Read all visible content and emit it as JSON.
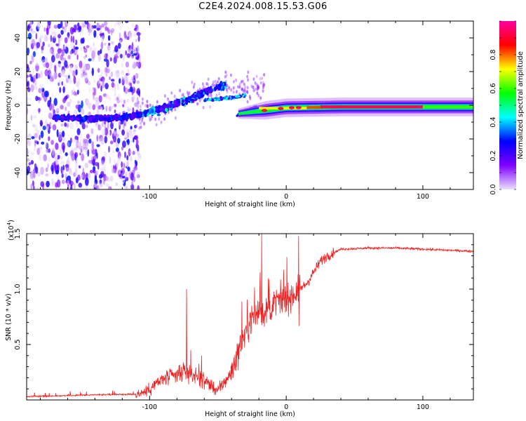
{
  "title": "C2E4.2024.008.15.53.G06",
  "chart_data": [
    {
      "type": "heatmap",
      "xlabel": "Height of straight line (km)",
      "ylabel": "Frequency (Hz)",
      "xlim": [
        -190,
        137
      ],
      "ylim": [
        -50,
        50
      ],
      "xticks": [
        -100,
        0,
        100
      ],
      "xtick_labels": [
        "-100",
        "0",
        "100"
      ],
      "yticks": [
        -40,
        -20,
        0,
        20,
        40
      ],
      "ytick_labels": [
        "-40",
        "-20",
        "0",
        "20",
        "40"
      ],
      "colorbar": {
        "label": "Normalized spectral amplitude",
        "range": [
          0,
          1
        ],
        "ticks": [
          0.0,
          0.2,
          0.4,
          0.6,
          0.8
        ],
        "tick_labels": [
          "0.0",
          "0.2",
          "0.4",
          "0.6",
          "0.8"
        ],
        "colors": [
          "#ebe0ff",
          "#8000ff",
          "#0000ff",
          "#00ffff",
          "#00ff00",
          "#ffff00",
          "#ff0000",
          "#ff00a0"
        ]
      },
      "features": [
        {
          "name": "noise region",
          "x_range": [
            -190,
            -110
          ],
          "y_range": [
            -50,
            50
          ],
          "amplitude": 0.1
        },
        {
          "name": "rising trace",
          "x": [
            -170,
            -130,
            -110,
            -90,
            -70,
            -55,
            -45
          ],
          "y": [
            -7,
            -8,
            -6,
            -2,
            4,
            9,
            12
          ],
          "amplitude": 0.35
        },
        {
          "name": "descending trace",
          "x": [
            -60,
            -45,
            -35,
            -30
          ],
          "y": [
            3,
            4,
            5,
            6
          ],
          "amplitude": 0.4
        },
        {
          "name": "stable carrier",
          "x_range": [
            -35,
            137
          ],
          "y": [
            -5,
            -3,
            -1.5,
            -1,
            -1
          ],
          "amplitude": 0.95
        }
      ]
    },
    {
      "type": "line",
      "xlabel": "Height of straight line (km)",
      "ylabel": "SNR (10 * v/v)",
      "y_scale_label": "(x10",
      "y_scale_exponent": "4",
      "y_scale_suffix": ")",
      "xlim": [
        -190,
        137
      ],
      "ylim": [
        0,
        1.5
      ],
      "xticks": [
        -100,
        0,
        100
      ],
      "xtick_labels": [
        "-100",
        "0",
        "100"
      ],
      "yticks": [
        0.5,
        1.0,
        1.5
      ],
      "ytick_labels": [
        "0.5",
        "1.0",
        "1.5"
      ],
      "color": "#ee2222",
      "series": [
        {
          "name": "SNR",
          "x": [
            -190,
            -160,
            -130,
            -110,
            -102,
            -95,
            -88,
            -80,
            -72,
            -60,
            -50,
            -40,
            -32,
            -25,
            -20,
            -15,
            -10,
            -5,
            0,
            5,
            10,
            15,
            20,
            25,
            30,
            40,
            60,
            80,
            100,
            120,
            137
          ],
          "y": [
            0.03,
            0.04,
            0.05,
            0.05,
            0.08,
            0.15,
            0.2,
            0.22,
            0.25,
            0.18,
            0.08,
            0.25,
            0.55,
            0.75,
            0.8,
            0.78,
            0.85,
            0.9,
            0.9,
            0.95,
            1.0,
            1.05,
            1.15,
            1.25,
            1.3,
            1.36,
            1.37,
            1.37,
            1.36,
            1.35,
            1.34
          ]
        }
      ],
      "annotations": [
        {
          "x": -73,
          "y": 1.0,
          "text": "spike"
        },
        {
          "x": -18,
          "y": 1.5,
          "text": "spike"
        },
        {
          "x": 9,
          "y": 1.48,
          "text": "spike"
        }
      ]
    }
  ]
}
